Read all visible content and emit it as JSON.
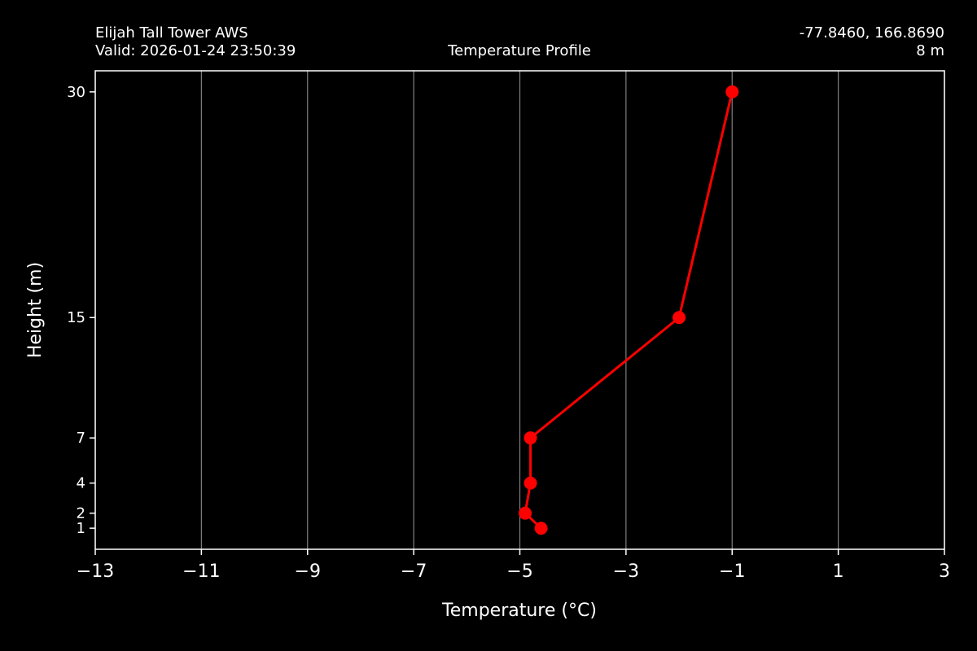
{
  "header": {
    "station": "Elijah Tall Tower AWS",
    "valid": "Valid: 2026-01-24 23:50:39",
    "title": "Temperature Profile",
    "coords": "-77.8460, 166.8690",
    "elevation": "8 m"
  },
  "colors": {
    "background": "#000000",
    "foreground": "#ffffff",
    "grid": "#808080",
    "series": "#ff0000"
  },
  "chart_data": {
    "type": "line",
    "xlabel": "Temperature (°C)",
    "ylabel": "Height (m)",
    "xlim": [
      -13,
      3
    ],
    "ylim": [
      -0.4,
      31.4
    ],
    "x_ticks": [
      -13,
      -11,
      -9,
      -7,
      -5,
      -3,
      -1,
      1,
      3
    ],
    "x_tick_labels": [
      "−13",
      "−11",
      "−9",
      "−7",
      "−5",
      "−3",
      "−1",
      "1",
      "3"
    ],
    "y_ticks": [
      1,
      2,
      4,
      7,
      15,
      30
    ],
    "y_tick_labels": [
      "1",
      "2",
      "4",
      "7",
      "15",
      "30"
    ],
    "grid": "vertical",
    "series": [
      {
        "heights": [
          1,
          2,
          4,
          7,
          15,
          30
        ],
        "temperatures": [
          -4.6,
          -4.9,
          -4.8,
          -4.8,
          -2.0,
          -1.0
        ],
        "marker": "circle"
      }
    ]
  }
}
